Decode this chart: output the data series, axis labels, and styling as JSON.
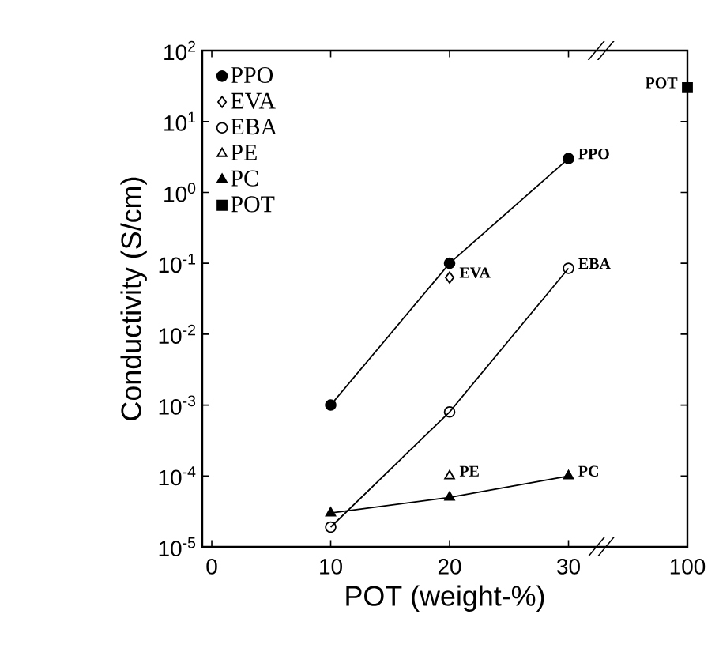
{
  "chart_data": {
    "type": "line",
    "xlabel": "POT (weight-%)",
    "ylabel": "Conductivity (S/cm)",
    "categories": [
      "0",
      "10",
      "20",
      "30",
      "100"
    ],
    "log": "y",
    "ylim": [
      1e-05,
      100
    ],
    "yticks": [
      {
        "value": 1e-05,
        "label": "10$^{-5}$"
      },
      {
        "value": 0.0001,
        "label": "10$^{-4}$"
      },
      {
        "value": 0.001,
        "label": "10$^{-3}$"
      },
      {
        "value": 0.01,
        "label": "10$^{-2}$"
      },
      {
        "value": 0.1,
        "label": "10$^{-1}$"
      },
      {
        "value": 1,
        "label": "10$^{0}$"
      },
      {
        "value": 10,
        "label": "10$^{1}$"
      },
      {
        "value": 100,
        "label": "10$^{2}$"
      }
    ],
    "legend": "top left",
    "line_style": "solid",
    "series": [
      {
        "name": "PPO",
        "color": "#000000",
        "marker": "circle",
        "x": [
          "10",
          "20",
          "30"
        ],
        "values": [
          0.001,
          0.1,
          3
        ]
      },
      {
        "name": "EVA",
        "type": "scatter",
        "color": "#000000",
        "marker": "diamond",
        "x": [
          "20"
        ],
        "values": [
          0.063
        ]
      },
      {
        "name": "EBA",
        "color": "#000000",
        "marker": "circle",
        "x": [
          "10",
          "20",
          "30"
        ],
        "values": [
          1.9e-05,
          0.0008,
          0.085
        ]
      },
      {
        "name": "PE",
        "type": "scatter",
        "color": "#000000",
        "marker": "triangle",
        "x": [
          "20"
        ],
        "values": [
          0.0001
        ]
      },
      {
        "name": "PC",
        "color": "#000000",
        "marker": "triangle",
        "x": [
          "10",
          "20",
          "30"
        ],
        "values": [
          3e-05,
          5e-05,
          0.0001
        ]
      },
      {
        "name": "POT",
        "type": "scatter",
        "color": "#000000",
        "marker": "square",
        "x": [
          "100"
        ],
        "values": [
          30
        ]
      }
    ],
    "annotations": [
      {
        "text": "PPO",
        "x": "30",
        "y": 3
      },
      {
        "text": "EVA",
        "x": "20",
        "y": 0.063
      },
      {
        "text": "EBA",
        "x": "30",
        "y": 0.085
      },
      {
        "text": "PE",
        "x": "20",
        "y": 0.0001
      },
      {
        "text": "PC",
        "x": "30",
        "y": 0.0001
      },
      {
        "text": "POT",
        "x": "100",
        "y": 30
      }
    ]
  }
}
